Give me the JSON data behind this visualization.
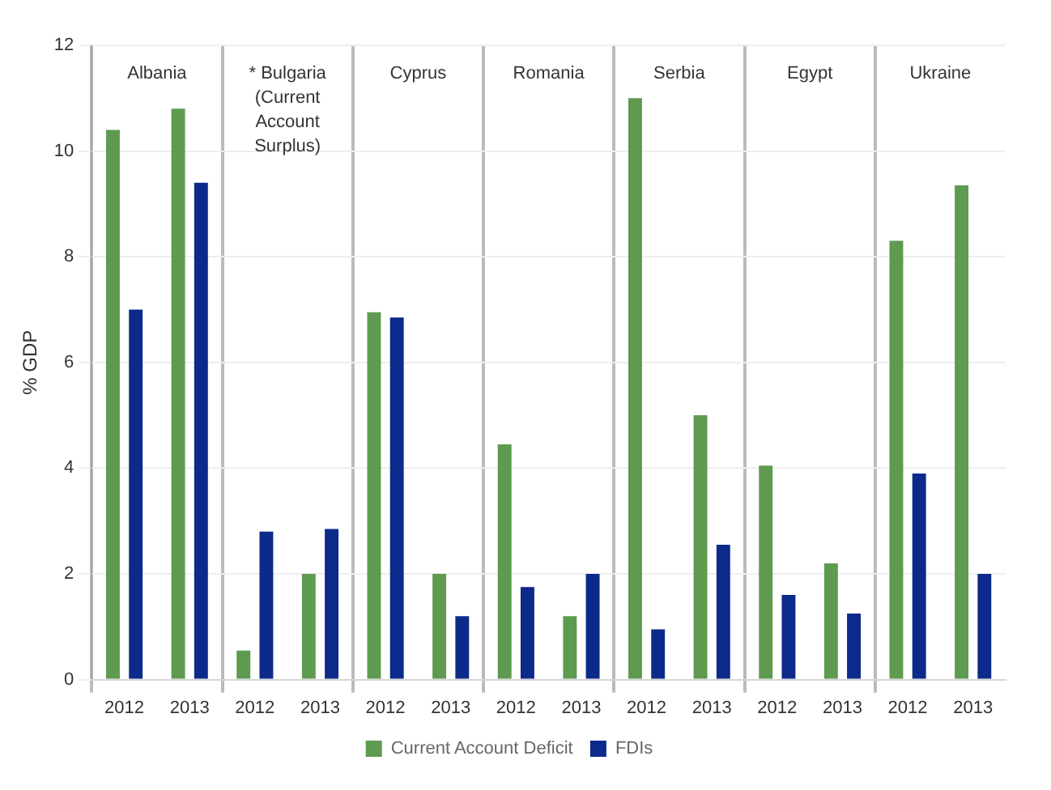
{
  "chart_data": {
    "type": "bar",
    "ylabel": "% GDP",
    "categories": [
      "2012",
      "2013",
      "2012",
      "2013",
      "2012",
      "2013",
      "2012",
      "2013",
      "2012",
      "2013",
      "2012",
      "2013",
      "2012",
      "2013"
    ],
    "series": [
      {
        "name": "Current Account Deficit",
        "color": "#5e9a50",
        "values": [
          10.4,
          10.8,
          0.55,
          2.0,
          6.95,
          2.0,
          4.45,
          1.2,
          11.0,
          5.0,
          4.05,
          2.2,
          8.3,
          9.35
        ]
      },
      {
        "name": "FDIs",
        "color": "#0c2a8a",
        "values": [
          7.0,
          9.4,
          2.8,
          2.85,
          6.85,
          1.2,
          1.75,
          2.0,
          0.95,
          2.55,
          1.6,
          1.25,
          3.9,
          2.0
        ]
      }
    ],
    "annotations": [
      "Albania",
      "* Bulgaria (Current Account Surplus)",
      "Cyprus",
      "Romania",
      "Serbia",
      "Egypt",
      "Ukraine"
    ],
    "ylim": [
      0,
      12
    ],
    "yticks": [
      0,
      2,
      4,
      6,
      8,
      10,
      12
    ],
    "grid": true,
    "legend": "bottom"
  }
}
